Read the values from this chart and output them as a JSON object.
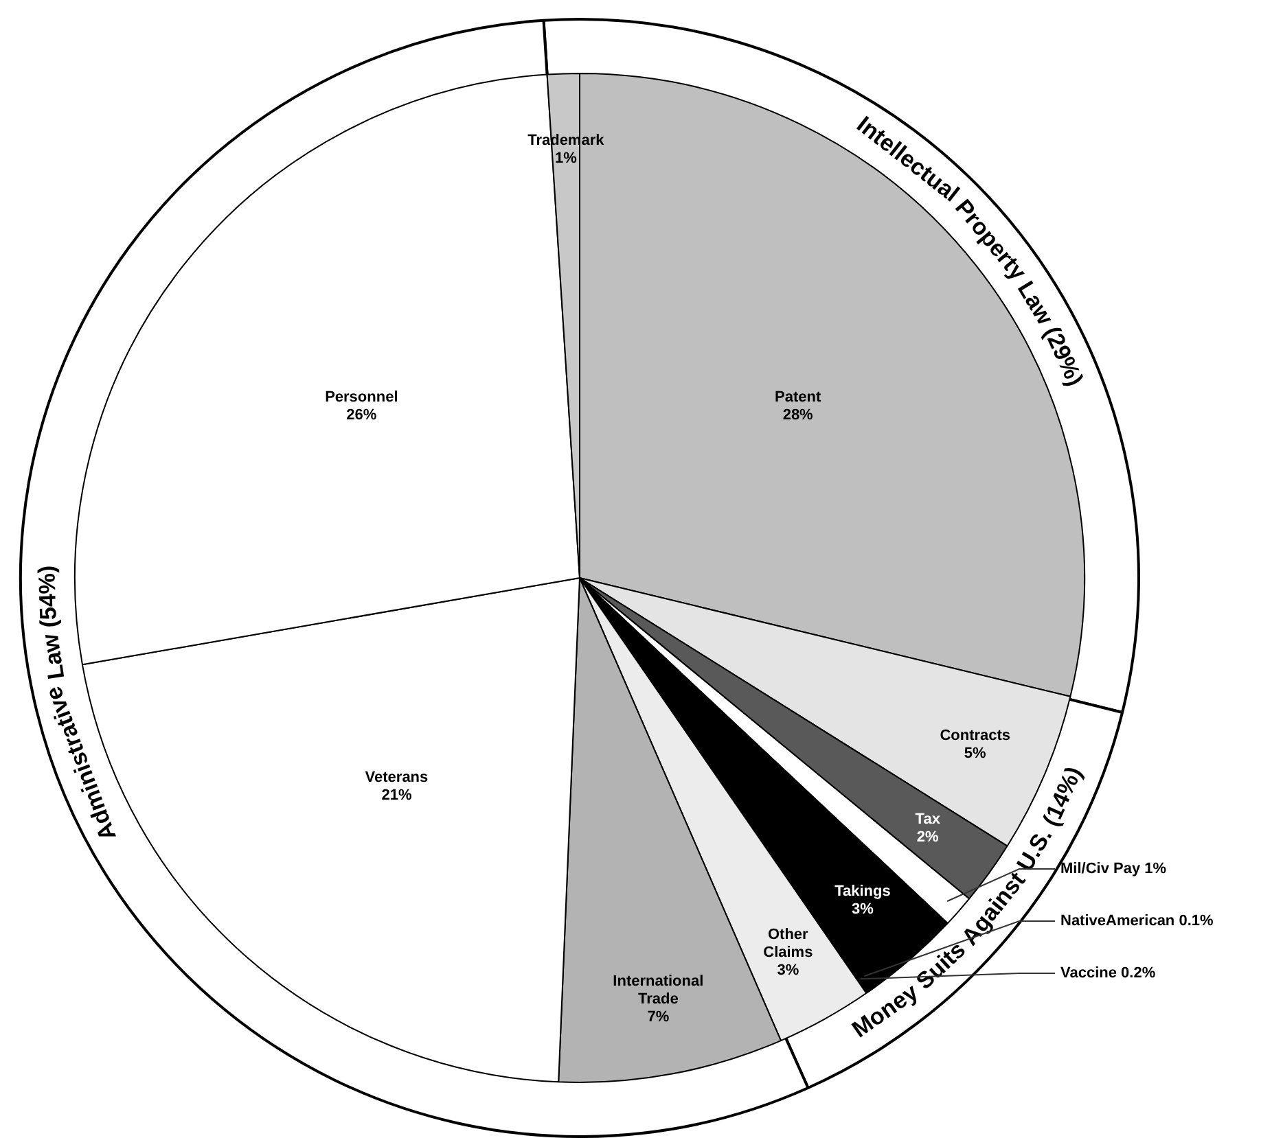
{
  "chart_data": [
    {
      "type": "donut",
      "categories": [
        "Intellectual Property Law",
        "Money Suits Against U.S.",
        "Administrative Law"
      ],
      "values": [
        29,
        14,
        54
      ],
      "colors": [
        "#ffffff",
        "#ffffff",
        "#ffffff"
      ],
      "value_labels": [
        "(29%)",
        "(14%)",
        "(54%)"
      ],
      "legend": false
    },
    {
      "type": "pie",
      "categories": [
        "Patent",
        "Contracts",
        "Tax",
        "Mil/Civ Pay",
        "Takings",
        "NativeAmerican",
        "Vaccine",
        "Other Claims",
        "International Trade",
        "Veterans",
        "Personnel",
        "Trademark"
      ],
      "values": [
        28,
        5,
        2,
        1,
        3,
        0.1,
        0.2,
        3,
        7,
        21,
        26,
        1
      ],
      "colors": [
        "#bfbfbf",
        "#e4e4e4",
        "#595959",
        "#ffffff",
        "#000000",
        "#000000",
        "#000000",
        "#ececec",
        "#b3b3b3",
        "#ffffff",
        "#ffffff",
        "#c8c8c8"
      ],
      "value_labels": [
        "28%",
        "5%",
        "2%",
        "1%",
        "3%",
        "0.1%",
        "0.2%",
        "3%",
        "7%",
        "21%",
        "26%",
        "1%"
      ],
      "legend": false
    }
  ]
}
